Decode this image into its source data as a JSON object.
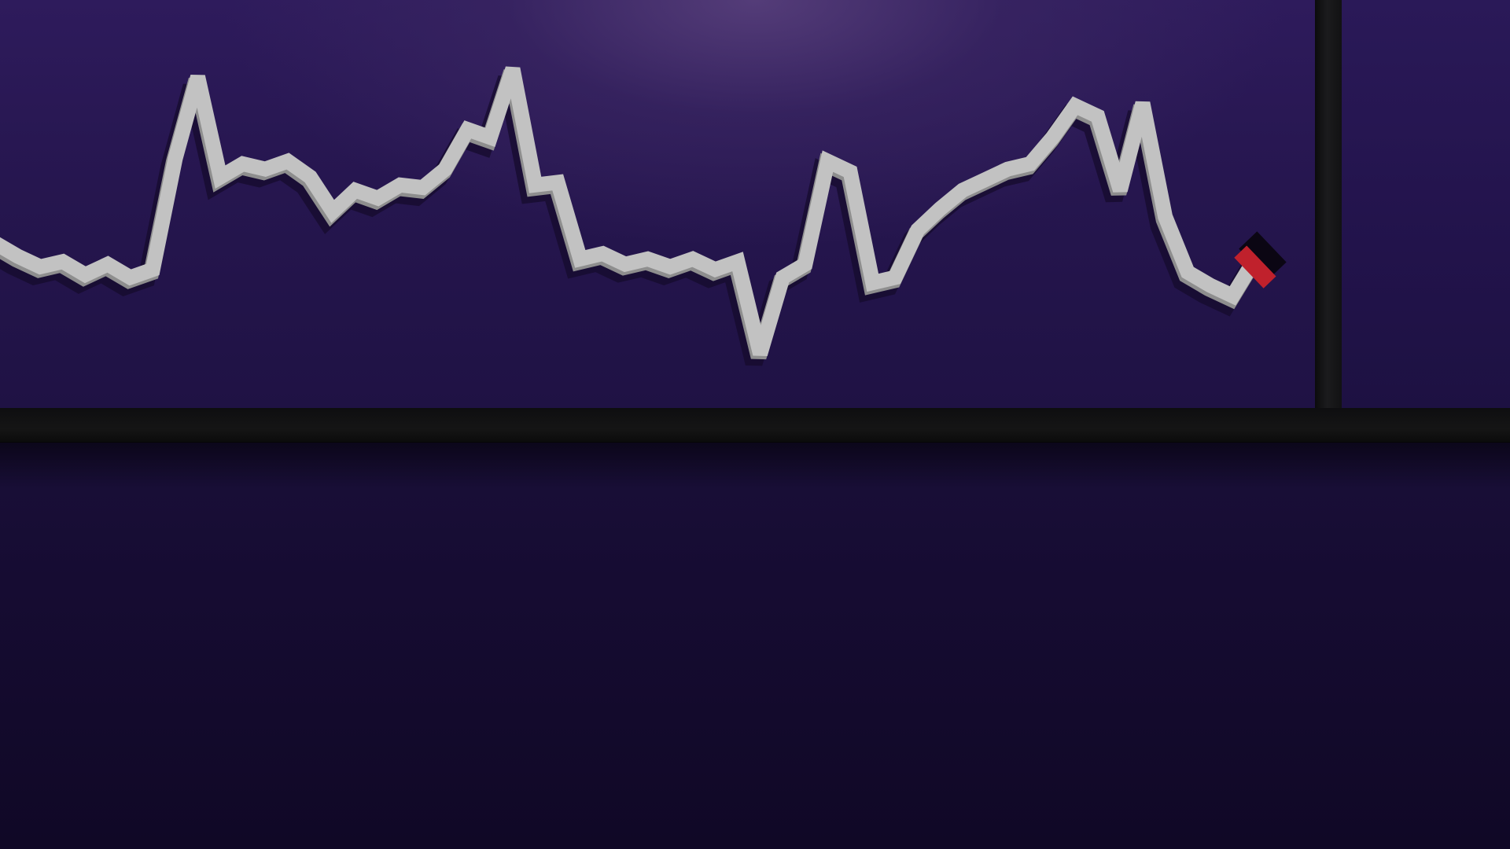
{
  "scene": {
    "description_colors": {
      "background_top": "#2e1b5c",
      "background_bottom": "#100826",
      "line": "#c2c2c2",
      "line_shadow": "#150b2c",
      "endpoint_marker": "#c0212c",
      "ledge": "#121212"
    }
  },
  "chart_data": {
    "type": "line",
    "title": "",
    "xlabel": "",
    "ylabel": "",
    "grid": false,
    "legend": "none",
    "x": [
      0,
      1,
      2,
      3,
      4,
      5,
      6,
      7,
      8,
      9,
      10,
      11,
      12,
      13,
      14,
      15,
      16,
      17,
      18,
      19,
      20,
      21,
      22,
      23,
      24,
      25,
      26,
      27,
      28,
      29,
      30,
      31,
      32,
      33,
      34,
      35,
      36,
      37,
      38,
      39,
      40,
      41,
      42,
      43,
      44,
      45,
      46,
      47,
      48,
      49,
      50,
      51,
      52,
      53,
      54,
      55,
      56
    ],
    "ylim": [
      0,
      100
    ],
    "series": [
      {
        "values": [
          30,
          25,
          21,
          23,
          18,
          22,
          17,
          20,
          62,
          93,
          55,
          60,
          58,
          61,
          55,
          42,
          50,
          47,
          52,
          51,
          58,
          73,
          70,
          96,
          52,
          53,
          24,
          26,
          22,
          24,
          21,
          24,
          20,
          23,
          -12,
          17,
          22,
          61,
          57,
          15,
          17,
          35,
          43,
          50,
          54,
          58,
          60,
          70,
          82,
          78,
          50,
          83,
          40,
          19,
          14,
          10,
          24
        ]
      }
    ],
    "endpoint_marker": "red"
  }
}
